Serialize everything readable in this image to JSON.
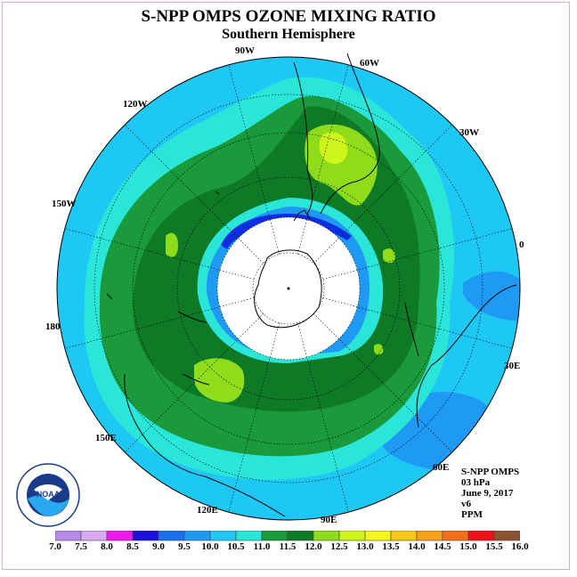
{
  "header": {
    "title": "S-NPP OMPS OZONE MIXING RATIO",
    "subtitle": "Southern Hemisphere"
  },
  "map": {
    "projection": "south-polar-stereographic",
    "longitude_labels": [
      {
        "text": "90W"
      },
      {
        "text": "60W"
      },
      {
        "text": "120W"
      },
      {
        "text": "30W"
      },
      {
        "text": "150W"
      },
      {
        "text": "0"
      },
      {
        "text": "180"
      },
      {
        "text": "30E"
      },
      {
        "text": "150E"
      },
      {
        "text": "60E"
      },
      {
        "text": "120E"
      },
      {
        "text": "90E"
      }
    ],
    "colors": {
      "outer": "#1ec8f5",
      "band_10_5": "#29e6d8",
      "band_11_0": "#1a9a3a",
      "band_11_5": "#0e7a26",
      "band_12_0": "#8edc1a",
      "band_12_5": "#cef61a",
      "polar_dark": "#1e8cf0",
      "polar_blue": "#0a2ee0",
      "no_data": "#ffffff"
    }
  },
  "info": {
    "instrument": "S-NPP OMPS",
    "level": "03 hPa",
    "date": "June 9, 2017",
    "version": "v6",
    "units": "PPM"
  },
  "colorbar": {
    "labels": [
      "7.0",
      "7.5",
      "8.0",
      "8.5",
      "9.0",
      "9.5",
      "10.0",
      "10.5",
      "11.0",
      "11.5",
      "12.0",
      "12.5",
      "13.0",
      "13.5",
      "14.0",
      "14.5",
      "15.0",
      "15.5",
      "16.0"
    ],
    "colors": [
      "#b68ae8",
      "#d8a8f0",
      "#f018f0",
      "#1a10e0",
      "#1a6ef0",
      "#1e9af5",
      "#1ec8f5",
      "#29e6d8",
      "#1a9a3a",
      "#0e7a26",
      "#8edc1a",
      "#cef61a",
      "#f6f61a",
      "#f6c81a",
      "#f6a01a",
      "#f66e1a",
      "#f0101a",
      "#8a5432"
    ]
  },
  "logo": {
    "text": "NOAA",
    "ring_text": "NATIONAL OCEANIC AND ATMOSPHERIC ADMINISTRATION · U.S. DEPARTMENT OF COMMERCE"
  }
}
